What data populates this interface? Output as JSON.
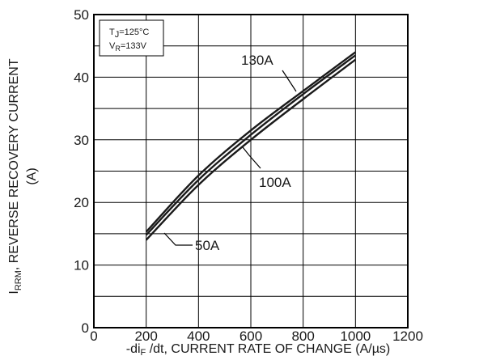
{
  "chart_data": {
    "type": "line",
    "conditions": {
      "tj_symbol": "T",
      "tj_sub": "J",
      "tj_value": "=125°C",
      "vr_symbol": "V",
      "vr_sub": "R",
      "vr_value": "=133V"
    },
    "xlabel": {
      "prefix": "-di",
      "sub": "F",
      "rest": " /dt, CURRENT RATE OF CHANGE (A/µs)"
    },
    "ylabel": {
      "symbol": "I",
      "sub": "RRM",
      "rest": ", REVERSE RECOVERY CURRENT",
      "line2": "(A)"
    },
    "xlim": [
      0,
      1200
    ],
    "ylim": [
      0,
      50
    ],
    "x_ticks": [
      "0",
      "200",
      "400",
      "600",
      "800",
      "1000",
      "1200"
    ],
    "y_ticks": [
      "0",
      "10",
      "20",
      "30",
      "40",
      "50"
    ],
    "grid": true,
    "series": [
      {
        "name": "130A",
        "x": [
          200,
          400,
          600,
          800,
          1000
        ],
        "y": [
          15.3,
          24.3,
          31.5,
          37.8,
          44.0
        ]
      },
      {
        "name": "100A",
        "x": [
          200,
          400,
          600,
          800,
          1000
        ],
        "y": [
          14.8,
          23.6,
          30.8,
          37.3,
          43.5
        ]
      },
      {
        "name": "50A",
        "x": [
          200,
          400,
          600,
          800,
          1000
        ],
        "y": [
          14.0,
          22.8,
          30.0,
          36.5,
          42.8
        ]
      }
    ]
  }
}
